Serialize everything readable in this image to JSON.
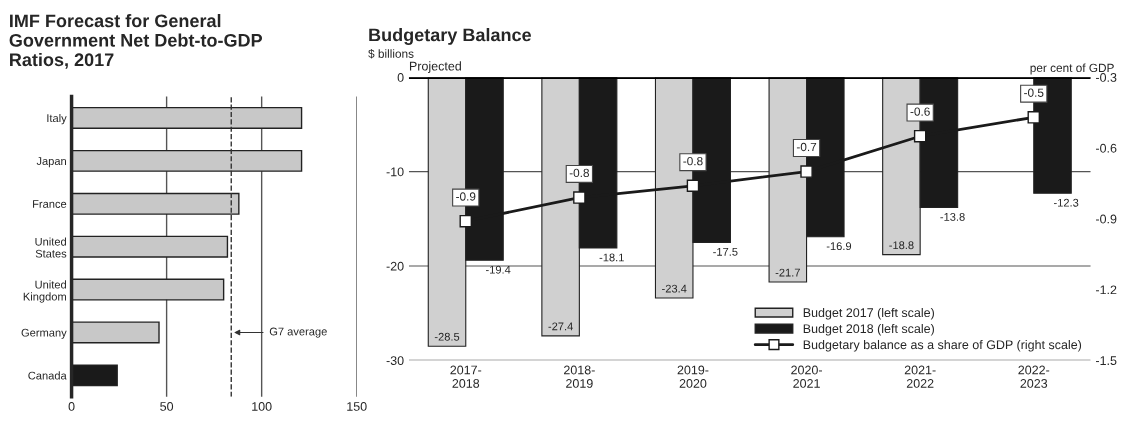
{
  "chart_data": [
    {
      "type": "bar",
      "orientation": "horizontal",
      "title": "IMF Forecast for General\nGovernment Net Debt-to-GDP\nRatios, 2017",
      "categories": [
        "Italy",
        "Japan",
        "France",
        "United\nStates",
        "United\nKingdom",
        "Germany",
        "Canada"
      ],
      "values": [
        121,
        121,
        88,
        82,
        80,
        46,
        24
      ],
      "colors": [
        "#c8c8c8",
        "#c8c8c8",
        "#c8c8c8",
        "#c8c8c8",
        "#c8c8c8",
        "#c8c8c8",
        "#1a1a1a"
      ],
      "xlim": [
        0,
        150
      ],
      "xticks": [
        0,
        50,
        100,
        150
      ],
      "grid": "x",
      "ref_lines": [
        {
          "axis": "x",
          "value": 84,
          "label": "G7 average",
          "color": "#333333",
          "line_style": "dashed"
        }
      ]
    },
    {
      "type": "bar",
      "title": "Budgetary Balance",
      "ylabel": "$ billions",
      "y2label": "per cent of GDP",
      "categories": [
        "2017-\n2018",
        "2018-\n2019",
        "2019-\n2020",
        "2020-\n2021",
        "2021-\n2022",
        "2022-\n2023"
      ],
      "series": [
        {
          "name": "Budget 2017 (left scale)",
          "color": "#d0d0d0",
          "values": [
            -28.5,
            -27.4,
            -23.4,
            -21.7,
            -18.8,
            null
          ],
          "value_labels": [
            "-28.5",
            "-27.4",
            "-23.4",
            "-21.7",
            "-18.8",
            null
          ]
        },
        {
          "name": "Budget 2018 (left scale)",
          "color": "#1a1a1a",
          "values": [
            -19.4,
            -18.1,
            -17.5,
            -16.9,
            -13.8,
            -12.3
          ],
          "value_labels": [
            "-19.4",
            "-18.1",
            "-17.5",
            "-16.9",
            "-13.8",
            "-12.3"
          ]
        },
        {
          "name": "Budgetary balance as a share of GDP (right scale)",
          "type": "line",
          "axis": "y2",
          "marker": "square",
          "color": "#1a1a1a",
          "values": [
            -0.91,
            -0.81,
            -0.76,
            -0.7,
            -0.55,
            -0.47
          ],
          "value_labels": [
            "-0.9",
            "-0.8",
            "-0.8",
            "-0.7",
            "-0.6",
            "-0.5"
          ]
        }
      ],
      "ylim": [
        -30,
        0
      ],
      "yticks": [
        -30,
        -20,
        -10,
        0
      ],
      "y2lim": [
        -1.5,
        -0.3
      ],
      "y2ticks": [
        -1.5,
        -1.2,
        -0.9,
        -0.6,
        -0.3
      ],
      "grid": "y",
      "legend": "bottom right",
      "annotations": [
        "Projected"
      ]
    }
  ]
}
